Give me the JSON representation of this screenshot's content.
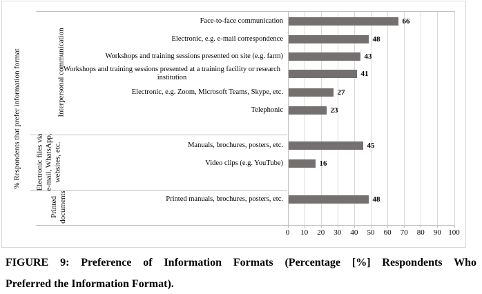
{
  "figure": {
    "caption_line1": "FIGURE 9: Preference of Information Formats (Percentage [%] Respondents Who",
    "caption_line2": "Preferred the Information Format)."
  },
  "chart_data": {
    "type": "bar",
    "orientation": "horizontal",
    "title": "",
    "xlabel": "",
    "ylabel": "% Respondents that prefer information format",
    "xlim": [
      0,
      100
    ],
    "x_ticks": [
      0,
      10,
      20,
      30,
      40,
      50,
      60,
      70,
      80,
      90,
      100
    ],
    "grid": true,
    "legend": "none",
    "bar_color": "#757070",
    "gridline_color": "#d9d9d9",
    "axis_line_color": "#bfbfbf",
    "groups": [
      {
        "label": "Interpersonal communication",
        "items": [
          {
            "category": "Face-to-face communication",
            "value": 66
          },
          {
            "category": "Electronic, e.g. e-mail correspondence",
            "value": 48
          },
          {
            "category": "Workshops and training sessions presented on site (e.g. farm)",
            "value": 43
          },
          {
            "category": "Workshops and training sessions presented at a training facility or research institution",
            "value": 41
          },
          {
            "category": "Electronic, e.g. Zoom, Microsoft Teams, Skype, etc.",
            "value": 27
          },
          {
            "category": "Telephonic",
            "value": 23
          }
        ]
      },
      {
        "label": "Electronic files via e-mail, WhatsApp, websites, etc.",
        "items": [
          {
            "category": "Manuals, brochures, posters, etc.",
            "value": 45
          },
          {
            "category": "Video clips (e.g. YouTube)",
            "value": 16
          }
        ]
      },
      {
        "label": "Printed documents",
        "items": [
          {
            "category": "Printed manuals, brochures, posters, etc.",
            "value": 48
          }
        ]
      }
    ]
  }
}
